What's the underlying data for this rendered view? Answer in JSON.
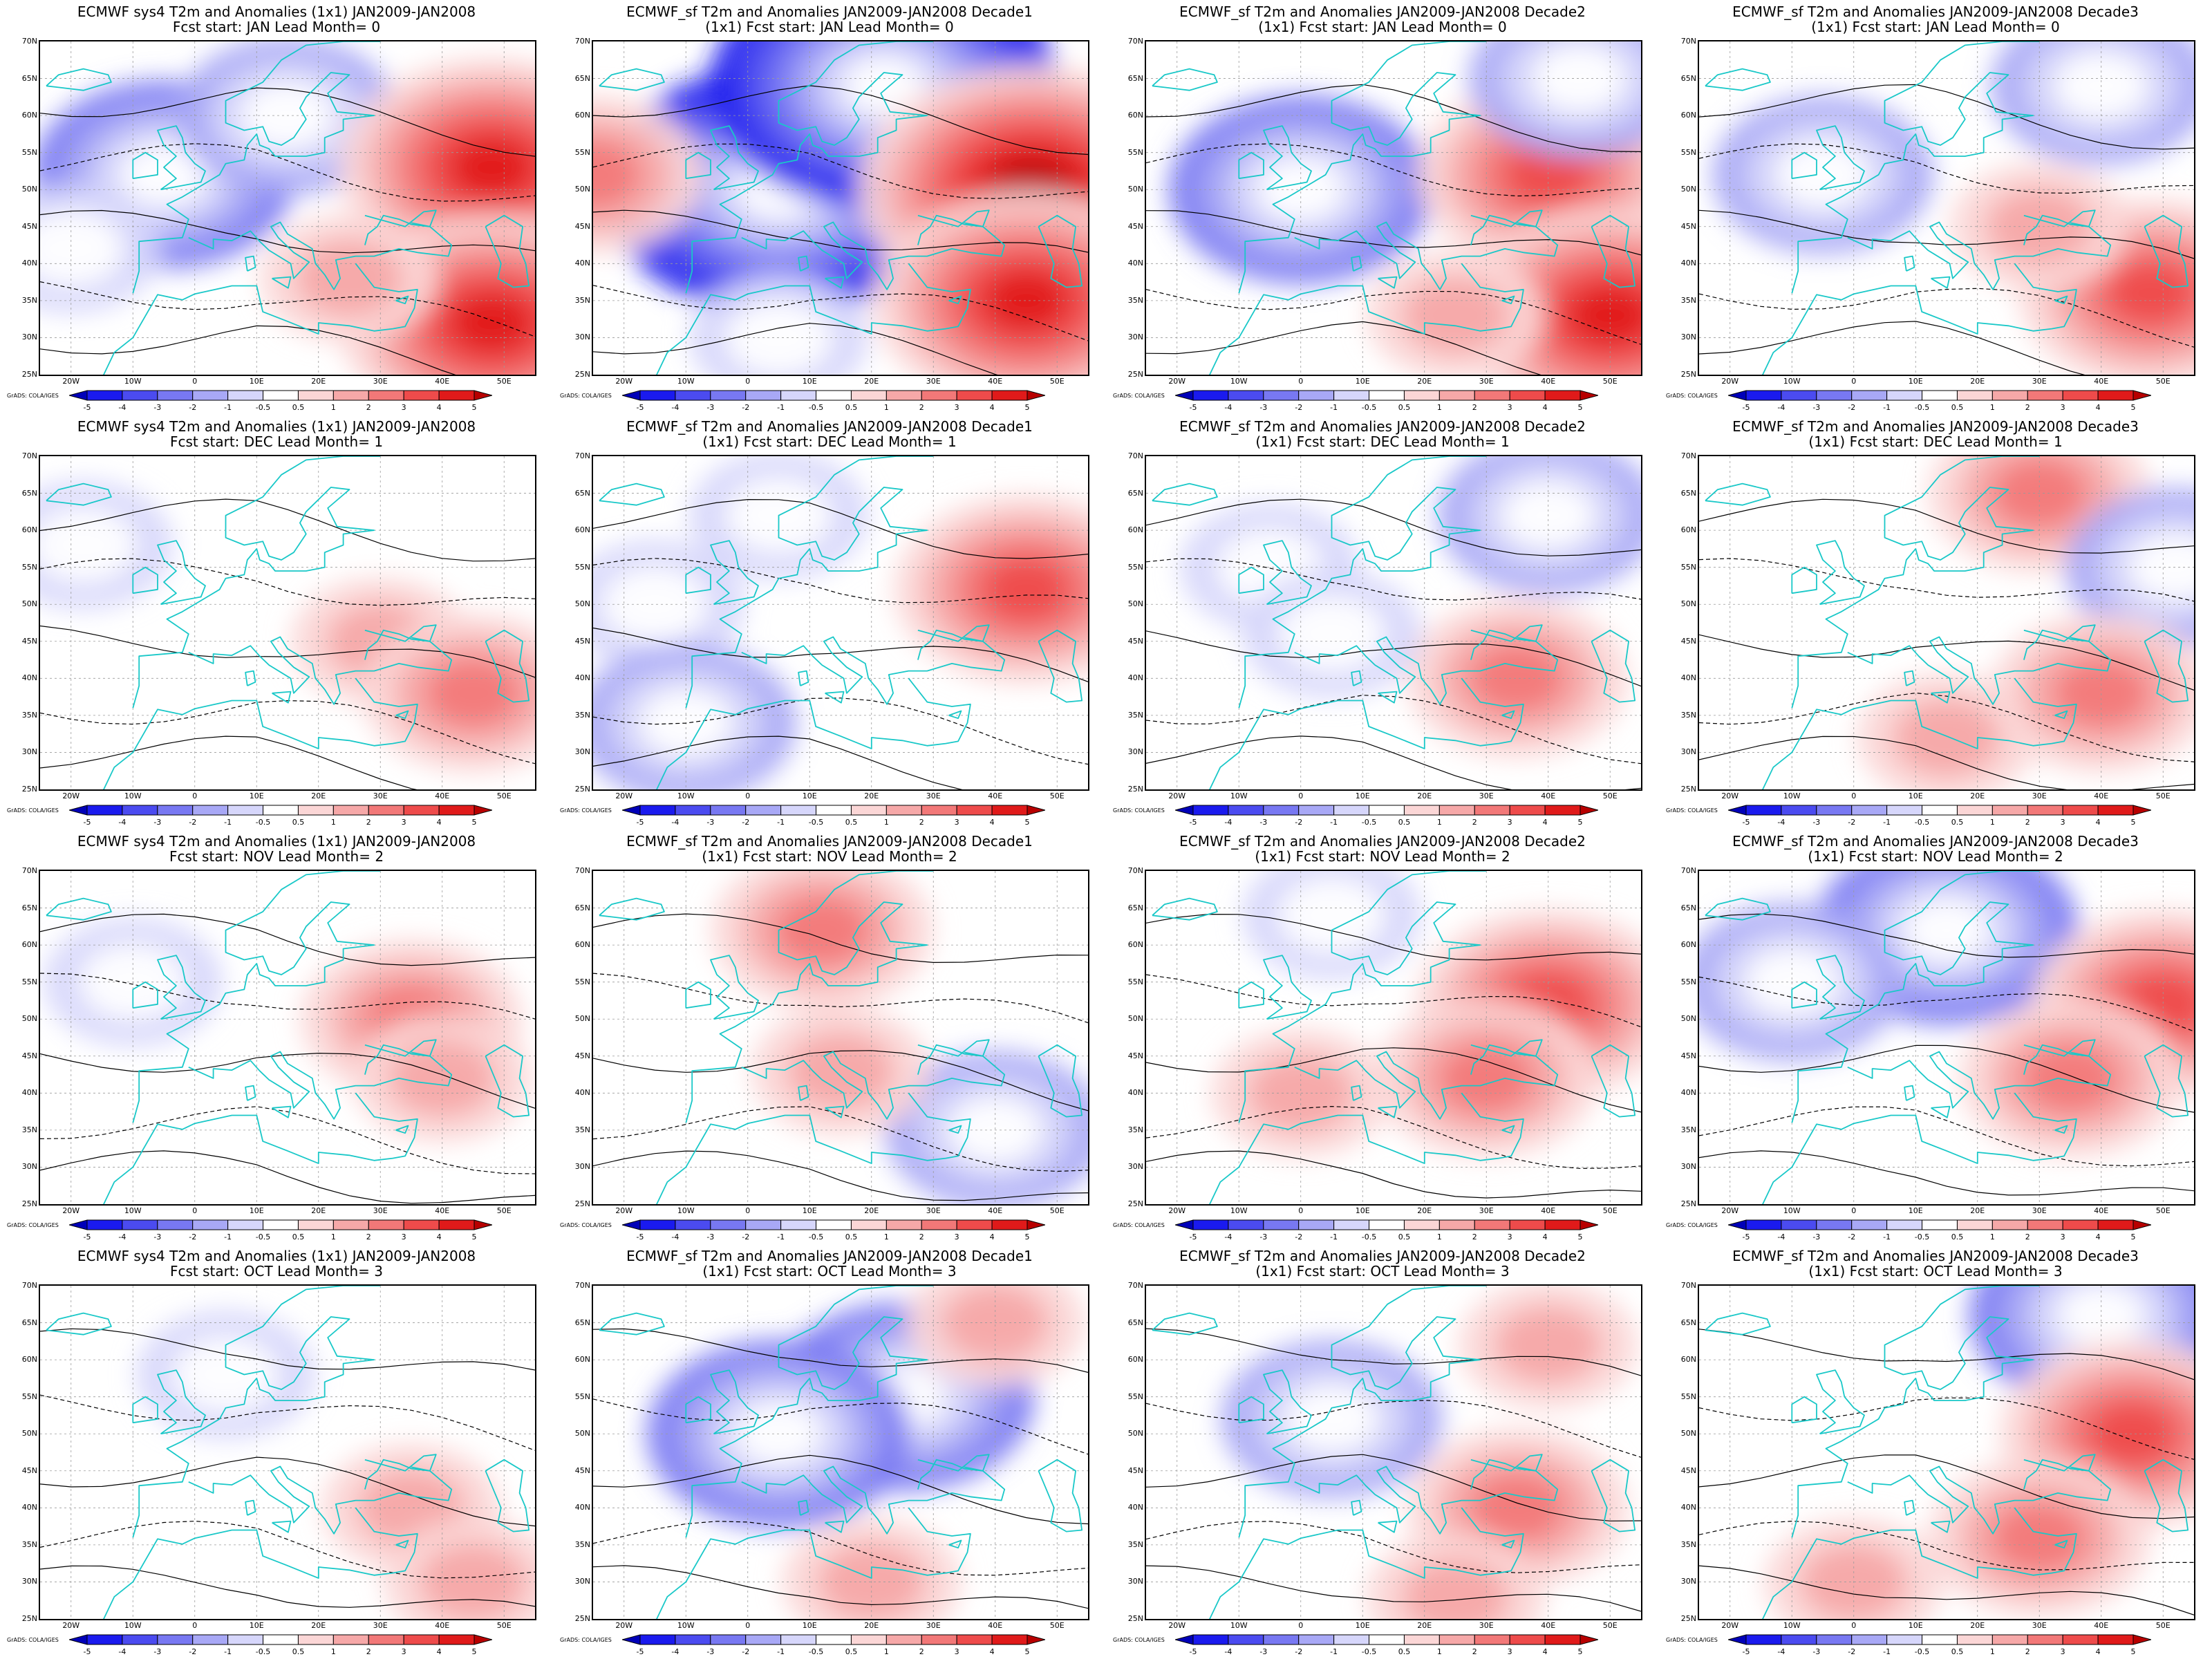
{
  "map": {
    "lat_labels": [
      "70N",
      "65N",
      "60N",
      "55N",
      "50N",
      "45N",
      "40N",
      "35N",
      "30N",
      "25N"
    ],
    "lon_labels": [
      "20W",
      "10W",
      "0",
      "10E",
      "20E",
      "30E",
      "40E",
      "50E"
    ],
    "colorbar_labels": [
      "-5",
      "-4",
      "-3",
      "-2",
      "-1",
      "-0.5",
      "0.5",
      "1",
      "2",
      "3",
      "4",
      "5"
    ],
    "colorbar_colors": [
      "#0000b8",
      "#1a1aee",
      "#4b4bf0",
      "#7878f2",
      "#a8a8f6",
      "#d6d6fb",
      "#ffffff",
      "#fbd6d6",
      "#f6a8a8",
      "#f27878",
      "#ee4b4b",
      "#e01a1a",
      "#b80000"
    ],
    "credit": "GrADS: COLA/IGES",
    "contour_color": "#000000",
    "coast_color": "#19c8c8"
  },
  "panels": [
    {
      "title1": "ECMWF sys4 T2m and Anomalies (1x1) JAN2009-JAN2008",
      "title2": "Fcst start: JAN  Lead Month= 0",
      "anomaly": [
        {
          "lat": 52,
          "lon": -5,
          "v": -3
        },
        {
          "lat": 60,
          "lon": 15,
          "v": -2
        },
        {
          "lat": 53,
          "lon": 48,
          "v": 4
        },
        {
          "lat": 32,
          "lon": 48,
          "v": 4
        },
        {
          "lat": 42,
          "lon": -20,
          "v": -1
        },
        {
          "lat": 38,
          "lon": 25,
          "v": 1
        }
      ]
    },
    {
      "title1": "ECMWF_sf T2m and Anomalies JAN2009-JAN2008 Decade1",
      "title2": "(1x1) Fcst start: JAN  Lead Month= 0",
      "anomaly": [
        {
          "lat": 50,
          "lon": 5,
          "v": -5
        },
        {
          "lat": 64,
          "lon": 22,
          "v": -5
        },
        {
          "lat": 50,
          "lon": 46,
          "v": 5
        },
        {
          "lat": 52,
          "lon": -25,
          "v": 2
        },
        {
          "lat": 35,
          "lon": 45,
          "v": 4
        },
        {
          "lat": 30,
          "lon": 5,
          "v": -1
        }
      ]
    },
    {
      "title1": "ECMWF_sf T2m and Anomalies JAN2009-JAN2008 Decade2",
      "title2": "(1x1) Fcst start: JAN  Lead Month= 0",
      "anomaly": [
        {
          "lat": 50,
          "lon": 0,
          "v": -3
        },
        {
          "lat": 52,
          "lon": 40,
          "v": 3
        },
        {
          "lat": 33,
          "lon": 50,
          "v": 4
        },
        {
          "lat": 33,
          "lon": 25,
          "v": 1
        },
        {
          "lat": 65,
          "lon": 45,
          "v": -2
        }
      ]
    },
    {
      "title1": "ECMWF_sf T2m and Anomalies JAN2009-JAN2008 Decade3",
      "title2": "(1x1) Fcst start: JAN  Lead Month= 0",
      "anomaly": [
        {
          "lat": 52,
          "lon": -5,
          "v": -2
        },
        {
          "lat": 64,
          "lon": 40,
          "v": -2
        },
        {
          "lat": 36,
          "lon": 48,
          "v": 3
        },
        {
          "lat": 45,
          "lon": 30,
          "v": 1
        }
      ]
    },
    {
      "title1": "ECMWF sys4 T2m and Anomalies (1x1) JAN2009-JAN2008",
      "title2": "Fcst start: DEC  Lead Month= 1",
      "anomaly": [
        {
          "lat": 58,
          "lon": -18,
          "v": -1
        },
        {
          "lat": 45,
          "lon": 30,
          "v": 1
        },
        {
          "lat": 38,
          "lon": 45,
          "v": 2
        },
        {
          "lat": 62,
          "lon": 35,
          "v": -0.5
        }
      ]
    },
    {
      "title1": "ECMWF_sf T2m and Anomalies JAN2009-JAN2008 Decade1",
      "title2": "(1x1) Fcst start: DEC  Lead Month= 1",
      "anomaly": [
        {
          "lat": 50,
          "lon": -15,
          "v": -1
        },
        {
          "lat": 34,
          "lon": -10,
          "v": -2
        },
        {
          "lat": 52,
          "lon": 45,
          "v": 3
        },
        {
          "lat": 62,
          "lon": 5,
          "v": -1
        }
      ]
    },
    {
      "title1": "ECMWF_sf T2m and Anomalies JAN2009-JAN2008 Decade2",
      "title2": "(1x1) Fcst start: DEC  Lead Month= 1",
      "anomaly": [
        {
          "lat": 62,
          "lon": 40,
          "v": -2
        },
        {
          "lat": 55,
          "lon": -5,
          "v": -1
        },
        {
          "lat": 40,
          "lon": 35,
          "v": 2
        },
        {
          "lat": 46,
          "lon": 5,
          "v": -1
        }
      ]
    },
    {
      "title1": "ECMWF_sf T2m and Anomalies JAN2009-JAN2008 Decade3",
      "title2": "(1x1) Fcst start: DEC  Lead Month= 1",
      "anomaly": [
        {
          "lat": 65,
          "lon": 30,
          "v": 2
        },
        {
          "lat": 55,
          "lon": 52,
          "v": -2
        },
        {
          "lat": 38,
          "lon": 40,
          "v": 2
        },
        {
          "lat": 32,
          "lon": 15,
          "v": 1
        }
      ]
    },
    {
      "title1": "ECMWF sys4 T2m and Anomalies (1x1) JAN2009-JAN2008",
      "title2": "Fcst start: NOV  Lead Month= 2",
      "anomaly": [
        {
          "lat": 55,
          "lon": -10,
          "v": -1
        },
        {
          "lat": 50,
          "lon": 35,
          "v": 2
        },
        {
          "lat": 42,
          "lon": 40,
          "v": 1
        },
        {
          "lat": 35,
          "lon": -20,
          "v": -0.5
        }
      ]
    },
    {
      "title1": "ECMWF_sf T2m and Anomalies JAN2009-JAN2008 Decade1",
      "title2": "(1x1) Fcst start: NOV  Lead Month= 2",
      "anomaly": [
        {
          "lat": 62,
          "lon": 12,
          "v": 2
        },
        {
          "lat": 35,
          "lon": 40,
          "v": -2
        },
        {
          "lat": 48,
          "lon": -18,
          "v": -0.5
        },
        {
          "lat": 43,
          "lon": 15,
          "v": 1
        }
      ]
    },
    {
      "title1": "ECMWF_sf T2m and Anomalies JAN2009-JAN2008 Decade2",
      "title2": "(1x1) Fcst start: NOV  Lead Month= 2",
      "anomaly": [
        {
          "lat": 52,
          "lon": 40,
          "v": 3
        },
        {
          "lat": 42,
          "lon": 30,
          "v": 2
        },
        {
          "lat": 64,
          "lon": 5,
          "v": -1
        },
        {
          "lat": 40,
          "lon": 0,
          "v": 1
        }
      ]
    },
    {
      "title1": "ECMWF_sf T2m and Anomalies JAN2009-JAN2008 Decade3",
      "title2": "(1x1) Fcst start: NOV  Lead Month= 2",
      "anomaly": [
        {
          "lat": 62,
          "lon": 15,
          "v": -3
        },
        {
          "lat": 55,
          "lon": -10,
          "v": -2
        },
        {
          "lat": 52,
          "lon": 50,
          "v": 3
        },
        {
          "lat": 42,
          "lon": 35,
          "v": 2
        }
      ]
    },
    {
      "title1": "ECMWF sys4 T2m and Anomalies (1x1) JAN2009-JAN2008",
      "title2": "Fcst start: OCT  Lead Month= 3",
      "anomaly": [
        {
          "lat": 58,
          "lon": 5,
          "v": -1
        },
        {
          "lat": 40,
          "lon": 35,
          "v": 1
        },
        {
          "lat": 30,
          "lon": 45,
          "v": 1
        }
      ]
    },
    {
      "title1": "ECMWF_sf T2m and Anomalies JAN2009-JAN2008 Decade1",
      "title2": "(1x1) Fcst start: OCT  Lead Month= 3",
      "anomaly": [
        {
          "lat": 55,
          "lon": 25,
          "v": -3
        },
        {
          "lat": 50,
          "lon": 5,
          "v": -3
        },
        {
          "lat": 65,
          "lon": 40,
          "v": 1
        },
        {
          "lat": 30,
          "lon": 20,
          "v": 1
        }
      ]
    },
    {
      "title1": "ECMWF_sf T2m and Anomalies JAN2009-JAN2008 Decade2",
      "title2": "(1x1) Fcst start: OCT  Lead Month= 3",
      "anomaly": [
        {
          "lat": 52,
          "lon": 5,
          "v": -2
        },
        {
          "lat": 40,
          "lon": 35,
          "v": 2
        },
        {
          "lat": 62,
          "lon": 40,
          "v": 1
        },
        {
          "lat": 28,
          "lon": 25,
          "v": 1
        }
      ]
    },
    {
      "title1": "ECMWF_sf T2m and Anomalies JAN2009-JAN2008 Decade3",
      "title2": "(1x1) Fcst start: OCT  Lead Month= 3",
      "anomaly": [
        {
          "lat": 66,
          "lon": 40,
          "v": -3
        },
        {
          "lat": 50,
          "lon": 45,
          "v": 3
        },
        {
          "lat": 36,
          "lon": 30,
          "v": 2
        },
        {
          "lat": 30,
          "lon": 0,
          "v": 1
        }
      ]
    }
  ]
}
